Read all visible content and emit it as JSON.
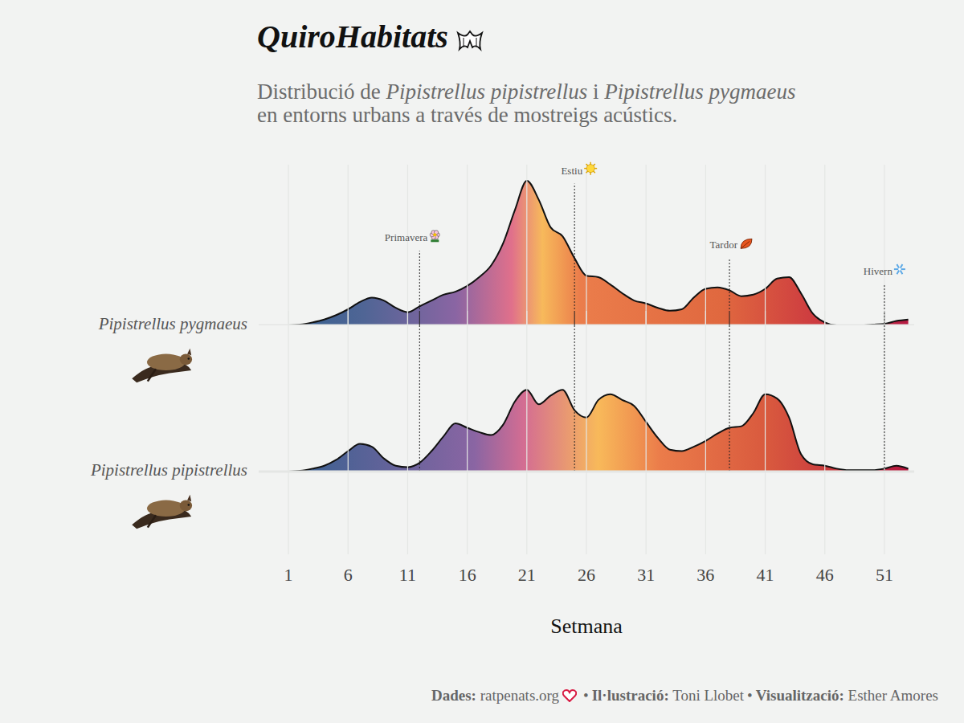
{
  "chart_data": {
    "type": "ridgeline",
    "title": "QuiroHabitats",
    "subtitle": "Distribució de Pipistrellus pipistrellus i Pipistrellus pygmaeus en entorns urbans a través de mostreigs acústics.",
    "x_label": "Setmana",
    "x": [
      1,
      2,
      3,
      4,
      5,
      6,
      7,
      8,
      9,
      10,
      11,
      12,
      13,
      14,
      15,
      16,
      17,
      18,
      19,
      20,
      21,
      22,
      23,
      24,
      25,
      26,
      27,
      28,
      29,
      30,
      31,
      32,
      33,
      34,
      35,
      36,
      37,
      38,
      39,
      40,
      41,
      42,
      43,
      44,
      45,
      46,
      47,
      48,
      49,
      50,
      51,
      52,
      53
    ],
    "xlim": [
      -1.5,
      53.5
    ],
    "xticks": [
      1,
      6,
      11,
      16,
      21,
      26,
      31,
      36,
      41,
      46,
      51
    ],
    "ylim": [
      0,
      1.1
    ],
    "tick_labels": "x",
    "grid": true,
    "series": [
      {
        "name": "Pipistrellus pygmaeus",
        "values": [
          0,
          0.005,
          0.02,
          0.04,
          0.07,
          0.11,
          0.16,
          0.19,
          0.17,
          0.12,
          0.09,
          0.13,
          0.17,
          0.21,
          0.23,
          0.27,
          0.33,
          0.41,
          0.56,
          0.79,
          0.99,
          0.86,
          0.67,
          0.61,
          0.46,
          0.34,
          0.33,
          0.28,
          0.22,
          0.17,
          0.15,
          0.12,
          0.1,
          0.11,
          0.19,
          0.25,
          0.26,
          0.24,
          0.2,
          0.21,
          0.25,
          0.32,
          0.33,
          0.22,
          0.08,
          0.02,
          0,
          0,
          0,
          0.005,
          0.01,
          0.03,
          0.04
        ]
      },
      {
        "name": "Pipistrellus pipistrellus",
        "values": [
          0,
          0.005,
          0.02,
          0.04,
          0.08,
          0.14,
          0.19,
          0.17,
          0.09,
          0.04,
          0.03,
          0.06,
          0.14,
          0.24,
          0.33,
          0.3,
          0.27,
          0.25,
          0.32,
          0.48,
          0.56,
          0.46,
          0.52,
          0.56,
          0.42,
          0.37,
          0.49,
          0.53,
          0.49,
          0.45,
          0.34,
          0.23,
          0.15,
          0.14,
          0.17,
          0.21,
          0.26,
          0.3,
          0.31,
          0.4,
          0.53,
          0.5,
          0.37,
          0.12,
          0.05,
          0.04,
          0.02,
          0.01,
          0.01,
          0.01,
          0.02,
          0.04,
          0.02
        ]
      }
    ],
    "annotations": [
      {
        "text": "Primavera",
        "x": 12,
        "y": 0.51
      },
      {
        "text": "Estiu",
        "x": 25,
        "y": 0.97
      },
      {
        "text": "Tardor",
        "x": 38,
        "y": 0.46
      },
      {
        "text": "Hivern",
        "x": 51,
        "y": 0.28
      }
    ],
    "caption": [
      {
        "label": "Dades:",
        "text": "ratpenats.org"
      },
      {
        "label": "Il·lustració:",
        "text": "Toni Llobet"
      },
      {
        "label": "Visualització:",
        "text": "Esther Amores"
      }
    ],
    "separator": "•"
  }
}
